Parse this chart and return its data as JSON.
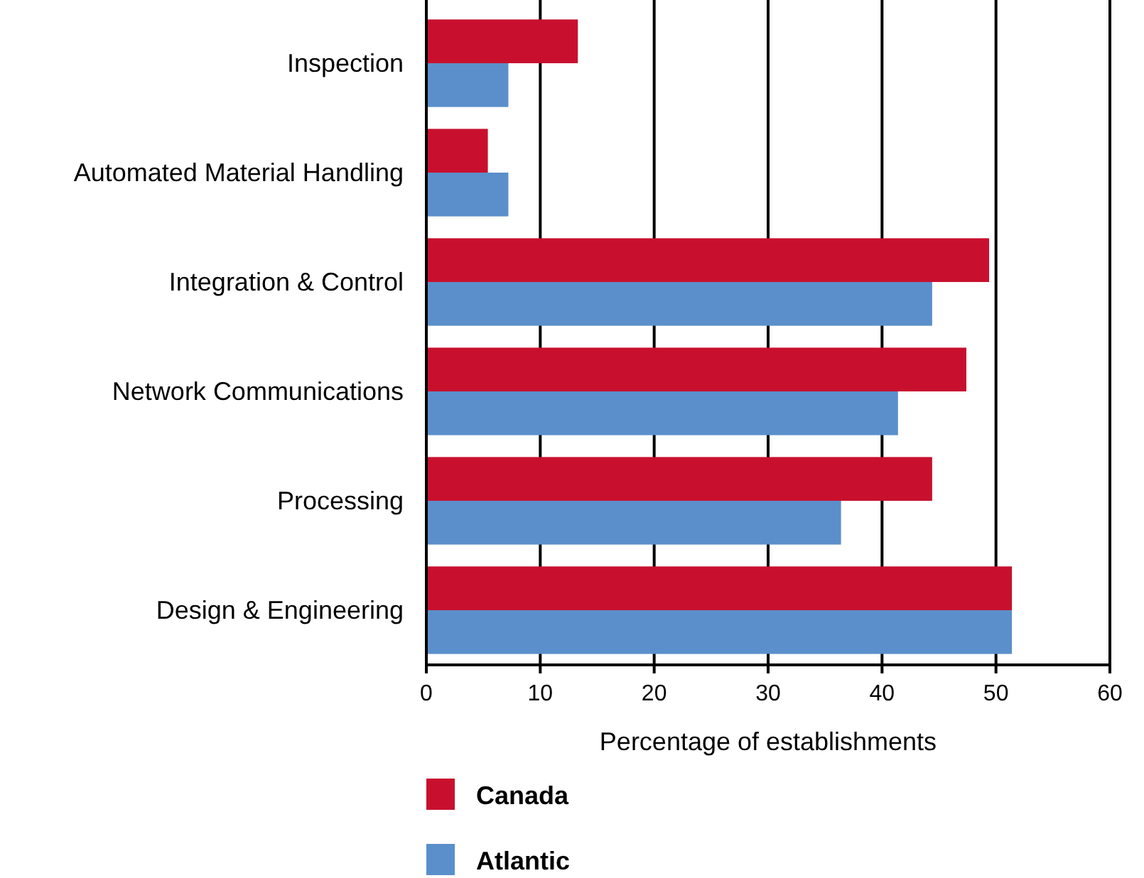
{
  "chart_data": {
    "type": "bar",
    "orientation": "horizontal",
    "xlabel": "Percentage of establishments",
    "categories": [
      "Inspection",
      "Automated Material Handling",
      "Integration & Control",
      "Network Communications",
      "Processing",
      "Design & Engineering"
    ],
    "series": [
      {
        "name": "Canada",
        "color": "#c8102e",
        "values": [
          13.3,
          5.4,
          49.4,
          47.4,
          44.4,
          51.4
        ]
      },
      {
        "name": "Atlantic",
        "color": "#5b8fcb",
        "values": [
          7.2,
          7.2,
          44.4,
          41.4,
          36.4,
          51.4
        ]
      }
    ],
    "xlim": [
      0,
      60
    ],
    "xticks": [
      0,
      10,
      20,
      30,
      40,
      50,
      60
    ],
    "grid": "x",
    "legend": "bottom"
  }
}
